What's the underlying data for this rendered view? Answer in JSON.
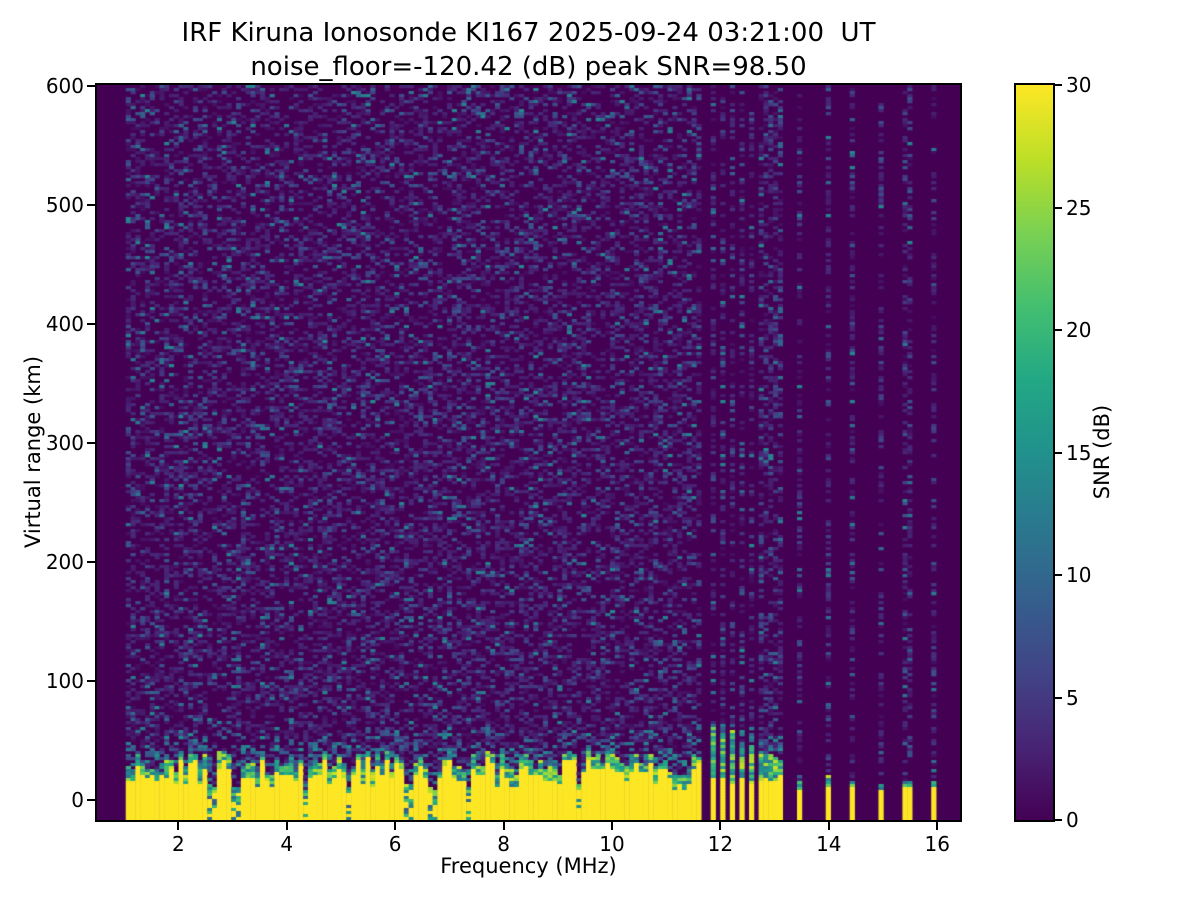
{
  "chart_data": {
    "type": "heatmap",
    "title": "IRF Kiruna Ionosonde KI167 2025-09-24 03:21:00  UT",
    "subtitle": "noise_floor=-120.42 (dB) peak SNR=98.50",
    "station": "KI167",
    "timestamp_ut": "2025-09-24 03:21:00",
    "noise_floor_db": -120.42,
    "peak_snr_db": 98.5,
    "xlabel": "Frequency (MHz)",
    "ylabel": "Virtual range (km)",
    "xlim": [
      0.5,
      16.42
    ],
    "ylim": [
      -17,
      601
    ],
    "xticks": [
      2,
      4,
      6,
      8,
      10,
      12,
      14,
      16
    ],
    "yticks": [
      0,
      100,
      200,
      300,
      400,
      500,
      600
    ],
    "grid": false,
    "colorbar": {
      "label": "SNR (dB)",
      "vmin": 0,
      "vmax": 30,
      "ticks": [
        0,
        5,
        10,
        15,
        20,
        25,
        30
      ],
      "colormap_name": "viridis",
      "colormap": [
        "#440154",
        "#482475",
        "#414487",
        "#355f8d",
        "#2a788e",
        "#21918c",
        "#22a884",
        "#44bf70",
        "#7ad151",
        "#bddf26",
        "#fde725"
      ]
    },
    "sweep": {
      "continuous_start_mhz": 1.0,
      "continuous_end_mhz": 11.66,
      "dense_stripes_mhz": [
        11.84,
        12.03,
        12.22,
        12.42,
        12.6,
        12.79,
        12.97,
        13.1
      ],
      "sparse_stripes_mhz": [
        13.44,
        13.95,
        14.45,
        14.97,
        15.45,
        15.95
      ]
    },
    "ground_echo_band": {
      "saturated_snr_db": 30,
      "solid_yellow_top_km": 25,
      "jagged_top_km_range": [
        20,
        42
      ],
      "extends_below_km": -17,
      "dense_stripe_top_km_at_11p84": 60,
      "dense_stripe_top_km_at_13p1": 26,
      "sparse_stripe_top_km": 16,
      "notch_freqs_mhz": [
        2.6,
        3.07,
        4.35,
        5.15,
        6.25,
        6.68,
        7.35,
        9.4
      ]
    },
    "background_noise": {
      "typical_snr_db": [
        0,
        8
      ],
      "speckle_fraction": 0.42,
      "bright_speckle_snr_db": 14
    }
  },
  "layout_text": {
    "background_color": "#ffffff"
  }
}
